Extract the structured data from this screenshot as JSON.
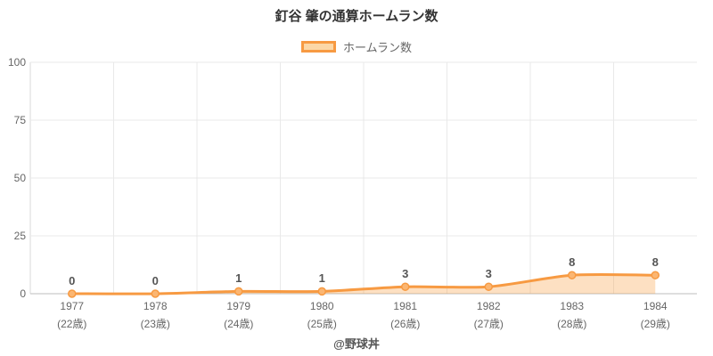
{
  "title": "釘谷 肇の通算ホームラン数",
  "legend": {
    "label": "ホームラン数"
  },
  "footer": "@野球丼",
  "colors": {
    "line": "#f79a42",
    "area_fill": "rgba(249,160,70,0.33)",
    "point_fill": "#fbb672",
    "legend_fill": "#fcd7a6",
    "grid": "#e9e9e9",
    "axis_left": "#dadada",
    "axis_bottom": "#bdbdbd",
    "tick_text": "#666666",
    "value_text": "#555555",
    "title_text": "#333333"
  },
  "chart_data": {
    "type": "area",
    "title": "釘谷 肇の通算ホームラン数",
    "categories": [
      "1977",
      "1978",
      "1979",
      "1980",
      "1981",
      "1982",
      "1983",
      "1984"
    ],
    "categories_sub": [
      "(22歳)",
      "(23歳)",
      "(24歳)",
      "(25歳)",
      "(26歳)",
      "(27歳)",
      "(28歳)",
      "(29歳)"
    ],
    "series": [
      {
        "name": "ホームラン数",
        "values": [
          0,
          0,
          1,
          1,
          3,
          3,
          8,
          8
        ]
      }
    ],
    "xlabel": "",
    "ylabel": "",
    "ylim": [
      0,
      100
    ],
    "y_ticks": [
      0,
      25,
      50,
      75,
      100
    ],
    "grid": true,
    "legend_position": "top",
    "watermark": "@野球丼"
  }
}
